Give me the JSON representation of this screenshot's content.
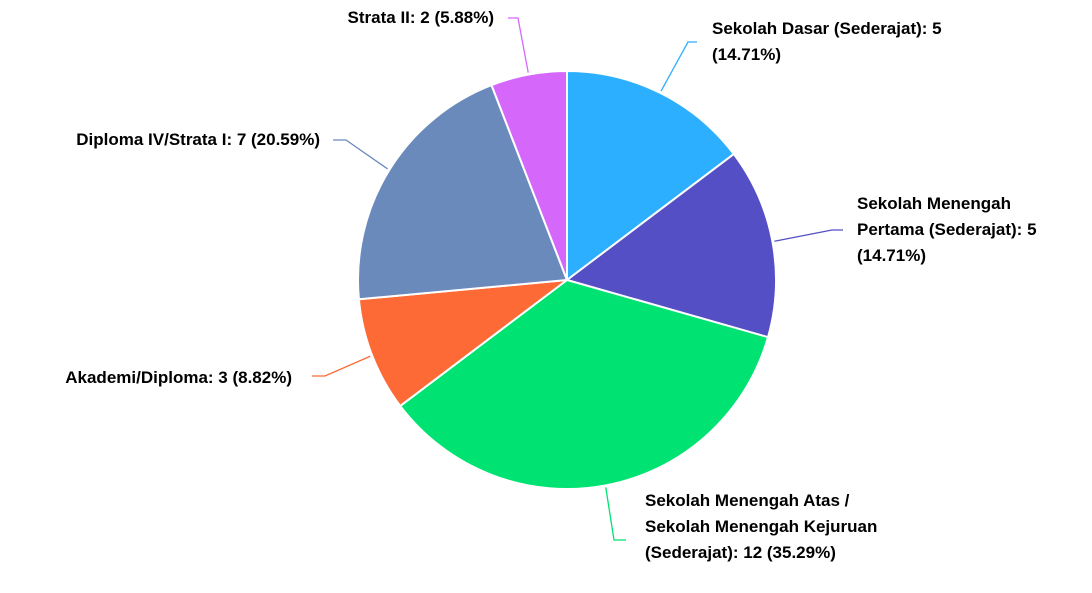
{
  "chart_data": {
    "type": "pie",
    "values": [
      5,
      5,
      12,
      3,
      7,
      2
    ],
    "value_labels": [
      "Sekolah Dasar (Sederajat): 5 (14.71%)",
      "Sekolah Menengah Pertama (Sederajat): 5 (14.71%)",
      "Sekolah Menengah Atas / Sekolah Menengah Kejuruan (Sederajat): 12 (35.29%)",
      "Akademi/Diploma: 3 (8.82%)",
      "Diploma IV/Strata I: 7 (20.59%)",
      "Strata II: 2 (5.88%)"
    ],
    "colors": [
      "#2caffe",
      "#544fc5",
      "#00e272",
      "#fe6a35",
      "#6b8abc",
      "#d568fb"
    ]
  }
}
